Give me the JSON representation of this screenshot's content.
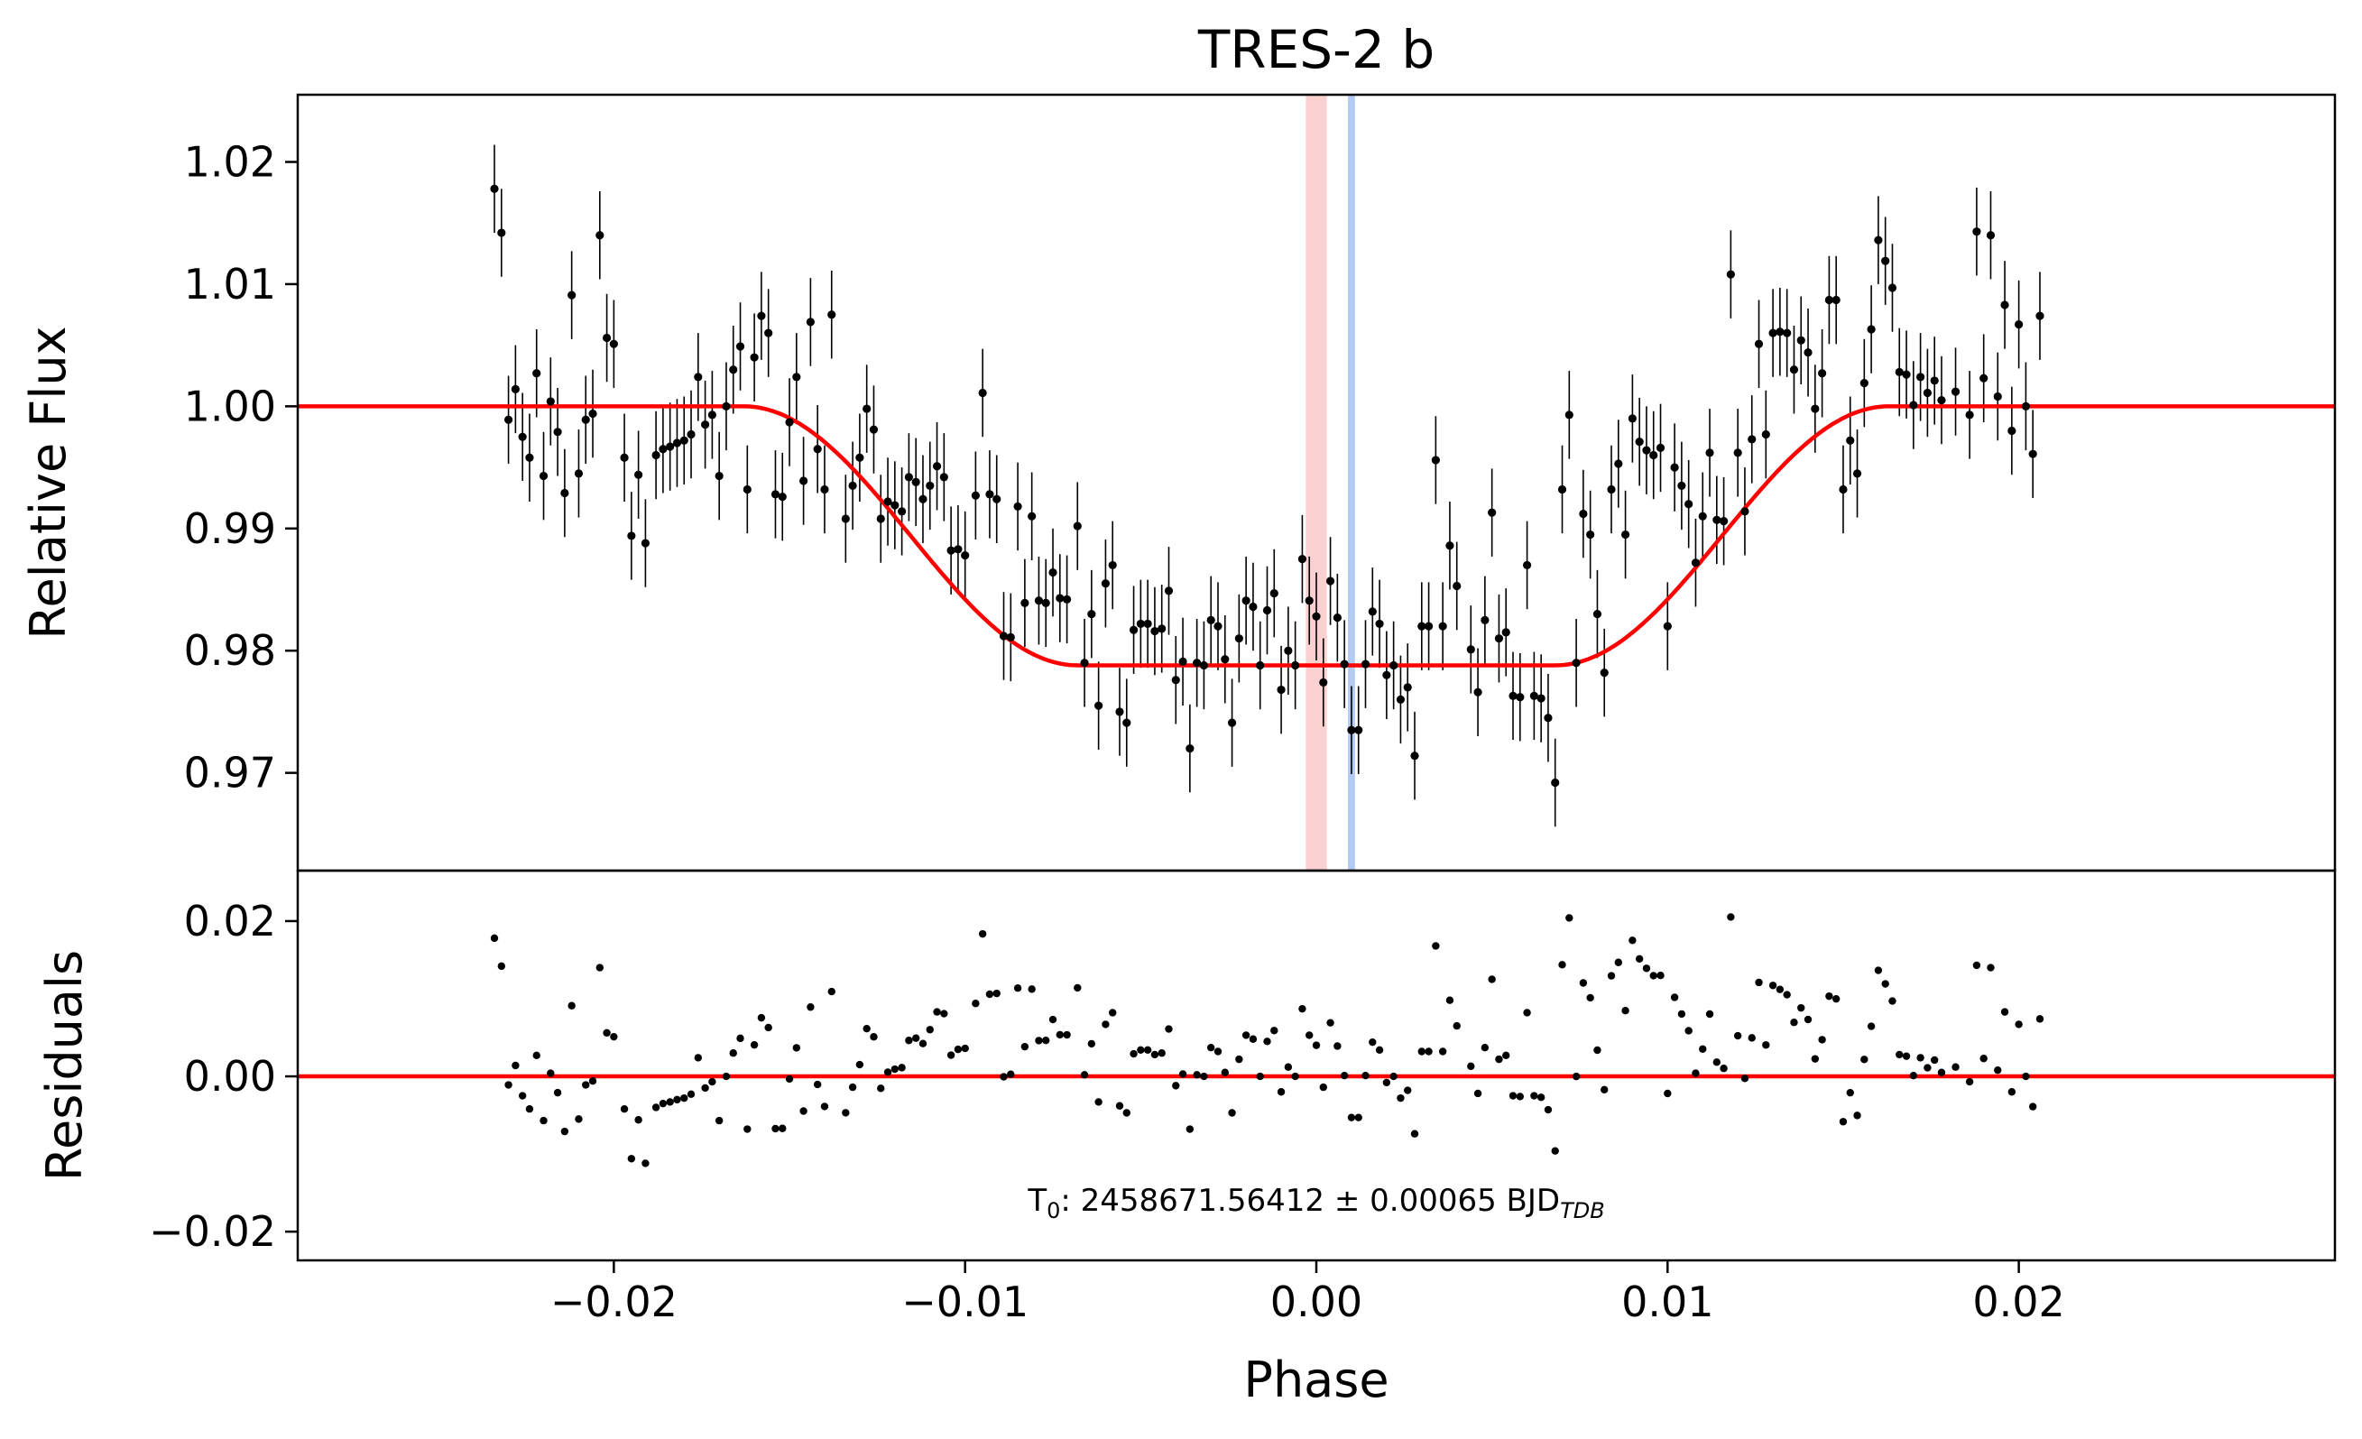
{
  "chart_data": {
    "type": "scatter",
    "title": "TRES-2 b",
    "xlabel": "Phase",
    "colors": {
      "model": "#ff0000",
      "points": "#000000",
      "band_red": "#f6a3a3",
      "band_blue": "#9ab8ee"
    },
    "xlim": [
      -0.029,
      0.029
    ],
    "xticks": [
      -0.02,
      -0.01,
      0.0,
      0.01,
      0.02
    ],
    "xtick_labels": [
      "−0.02",
      "−0.01",
      "0.00",
      "0.01",
      "0.02"
    ],
    "bands": {
      "red": [
        -0.0003,
        0.0003
      ],
      "blue": [
        0.0009,
        0.0011
      ]
    },
    "top_panel": {
      "ylabel": "Relative Flux",
      "ylim": [
        0.962,
        1.0255
      ],
      "yticks": [
        0.97,
        0.98,
        0.99,
        1.0,
        1.01,
        1.02
      ],
      "ytick_labels": [
        "0.97",
        "0.98",
        "0.99",
        "1.00",
        "1.01",
        "1.02"
      ],
      "model": {
        "depth": 0.0212,
        "t1": 0.0163,
        "t2": 0.0068
      },
      "points": [
        [
          -0.0234,
          1.0178
        ],
        [
          -0.0232,
          1.0142
        ],
        [
          -0.023,
          0.9989
        ],
        [
          -0.0228,
          1.0014
        ],
        [
          -0.0226,
          0.9975
        ],
        [
          -0.0224,
          0.9958
        ],
        [
          -0.0222,
          1.0027
        ],
        [
          -0.022,
          0.9943
        ],
        [
          -0.0218,
          1.0004
        ],
        [
          -0.0216,
          0.9979
        ],
        [
          -0.0214,
          0.9929
        ],
        [
          -0.0212,
          1.0091
        ],
        [
          -0.021,
          0.9945
        ],
        [
          -0.0208,
          0.9989
        ],
        [
          -0.0206,
          0.9994
        ],
        [
          -0.0204,
          1.014
        ],
        [
          -0.0202,
          1.0056
        ],
        [
          -0.02,
          1.0051
        ],
        [
          -0.0197,
          0.9958
        ],
        [
          -0.0195,
          0.9894
        ],
        [
          -0.0193,
          0.9944
        ],
        [
          -0.0191,
          0.9888
        ],
        [
          -0.0188,
          0.996
        ],
        [
          -0.0186,
          0.9965
        ],
        [
          -0.0184,
          0.9967
        ],
        [
          -0.0182,
          0.997
        ],
        [
          -0.018,
          0.9972
        ],
        [
          -0.0178,
          0.9977
        ],
        [
          -0.0176,
          1.0024
        ],
        [
          -0.0174,
          0.9985
        ],
        [
          -0.0172,
          0.9993
        ],
        [
          -0.017,
          0.9943
        ],
        [
          -0.0168,
          1.0
        ],
        [
          -0.0166,
          1.003
        ],
        [
          -0.0164,
          1.0049
        ],
        [
          -0.0162,
          0.9932
        ],
        [
          -0.016,
          1.004
        ],
        [
          -0.0158,
          1.0074
        ],
        [
          -0.0156,
          1.006
        ],
        [
          -0.0154,
          0.9928
        ],
        [
          -0.0152,
          0.9926
        ],
        [
          -0.015,
          0.9987
        ],
        [
          -0.0148,
          1.0024
        ],
        [
          -0.0146,
          0.9939
        ],
        [
          -0.0144,
          1.0069
        ],
        [
          -0.0142,
          0.9965
        ],
        [
          -0.014,
          0.9932
        ],
        [
          -0.0138,
          1.0075
        ],
        [
          -0.0134,
          0.9908
        ],
        [
          -0.0132,
          0.9935
        ],
        [
          -0.013,
          0.9958
        ],
        [
          -0.0128,
          0.9998
        ],
        [
          -0.0126,
          0.9981
        ],
        [
          -0.0124,
          0.9908
        ],
        [
          -0.0122,
          0.9922
        ],
        [
          -0.012,
          0.9919
        ],
        [
          -0.0118,
          0.9914
        ],
        [
          -0.0116,
          0.9942
        ],
        [
          -0.0114,
          0.9938
        ],
        [
          -0.0112,
          0.9924
        ],
        [
          -0.011,
          0.9935
        ],
        [
          -0.0108,
          0.9951
        ],
        [
          -0.0106,
          0.9942
        ],
        [
          -0.0104,
          0.9882
        ],
        [
          -0.0102,
          0.9883
        ],
        [
          -0.01,
          0.9878
        ],
        [
          -0.0097,
          0.9927
        ],
        [
          -0.0095,
          1.0011
        ],
        [
          -0.0093,
          0.9928
        ],
        [
          -0.0091,
          0.9924
        ],
        [
          -0.0089,
          0.9812
        ],
        [
          -0.0087,
          0.9811
        ],
        [
          -0.0085,
          0.9918
        ],
        [
          -0.0083,
          0.9839
        ],
        [
          -0.0081,
          0.991
        ],
        [
          -0.0079,
          0.9841
        ],
        [
          -0.0077,
          0.9839
        ],
        [
          -0.0075,
          0.9864
        ],
        [
          -0.0073,
          0.9843
        ],
        [
          -0.0071,
          0.9842
        ],
        [
          -0.0068,
          0.9902
        ],
        [
          -0.0066,
          0.979
        ],
        [
          -0.0064,
          0.983
        ],
        [
          -0.0062,
          0.9755
        ],
        [
          -0.006,
          0.9855
        ],
        [
          -0.0058,
          0.987
        ],
        [
          -0.0056,
          0.975
        ],
        [
          -0.0054,
          0.9741
        ],
        [
          -0.0052,
          0.9817
        ],
        [
          -0.005,
          0.9822
        ],
        [
          -0.0048,
          0.9822
        ],
        [
          -0.0046,
          0.9816
        ],
        [
          -0.0044,
          0.9818
        ],
        [
          -0.0042,
          0.9849
        ],
        [
          -0.004,
          0.9776
        ],
        [
          -0.0038,
          0.9791
        ],
        [
          -0.0036,
          0.972
        ],
        [
          -0.0034,
          0.979
        ],
        [
          -0.0032,
          0.9788
        ],
        [
          -0.003,
          0.9825
        ],
        [
          -0.0028,
          0.982
        ],
        [
          -0.0026,
          0.9793
        ],
        [
          -0.0024,
          0.9741
        ],
        [
          -0.0022,
          0.981
        ],
        [
          -0.002,
          0.9841
        ],
        [
          -0.0018,
          0.9836
        ],
        [
          -0.0016,
          0.9788
        ],
        [
          -0.0014,
          0.9833
        ],
        [
          -0.0012,
          0.9847
        ],
        [
          -0.001,
          0.9768
        ],
        [
          -0.0008,
          0.98
        ],
        [
          -0.0006,
          0.9788
        ],
        [
          -0.0004,
          0.9875
        ],
        [
          -0.0002,
          0.9841
        ],
        [
          0.0,
          0.9828
        ],
        [
          0.0002,
          0.9774
        ],
        [
          0.0004,
          0.9857
        ],
        [
          0.0006,
          0.9827
        ],
        [
          0.0008,
          0.9789
        ],
        [
          0.001,
          0.9735
        ],
        [
          0.0012,
          0.9735
        ],
        [
          0.0014,
          0.9789
        ],
        [
          0.0016,
          0.9832
        ],
        [
          0.0018,
          0.9822
        ],
        [
          0.002,
          0.978
        ],
        [
          0.0022,
          0.9788
        ],
        [
          0.0024,
          0.976
        ],
        [
          0.0026,
          0.977
        ],
        [
          0.0028,
          0.9714
        ],
        [
          0.003,
          0.982
        ],
        [
          0.0032,
          0.982
        ],
        [
          0.0034,
          0.9956
        ],
        [
          0.0036,
          0.982
        ],
        [
          0.0038,
          0.9886
        ],
        [
          0.004,
          0.9853
        ],
        [
          0.0044,
          0.9801
        ],
        [
          0.0046,
          0.9766
        ],
        [
          0.0048,
          0.9825
        ],
        [
          0.005,
          0.9913
        ],
        [
          0.0052,
          0.981
        ],
        [
          0.0054,
          0.9815
        ],
        [
          0.0056,
          0.9763
        ],
        [
          0.0058,
          0.9762
        ],
        [
          0.006,
          0.987
        ],
        [
          0.0062,
          0.9763
        ],
        [
          0.0064,
          0.9761
        ],
        [
          0.0066,
          0.9745
        ],
        [
          0.0068,
          0.9692
        ],
        [
          0.007,
          0.9932
        ],
        [
          0.0072,
          0.9993
        ],
        [
          0.0074,
          0.979
        ],
        [
          0.0076,
          0.9912
        ],
        [
          0.0078,
          0.9895
        ],
        [
          0.008,
          0.983
        ],
        [
          0.0082,
          0.9782
        ],
        [
          0.0084,
          0.9932
        ],
        [
          0.0086,
          0.9953
        ],
        [
          0.0088,
          0.9895
        ],
        [
          0.009,
          0.999
        ],
        [
          0.0092,
          0.9971
        ],
        [
          0.0094,
          0.9964
        ],
        [
          0.0096,
          0.996
        ],
        [
          0.0098,
          0.9966
        ],
        [
          0.01,
          0.982
        ],
        [
          0.0102,
          0.995
        ],
        [
          0.0104,
          0.9935
        ],
        [
          0.0106,
          0.992
        ],
        [
          0.0108,
          0.9872
        ],
        [
          0.011,
          0.991
        ],
        [
          0.0112,
          0.9962
        ],
        [
          0.0114,
          0.9907
        ],
        [
          0.0116,
          0.9906
        ],
        [
          0.0118,
          1.0108
        ],
        [
          0.012,
          0.9962
        ],
        [
          0.0122,
          0.9914
        ],
        [
          0.0124,
          0.9973
        ],
        [
          0.0126,
          1.0051
        ],
        [
          0.0128,
          0.9977
        ],
        [
          0.013,
          1.006
        ],
        [
          0.0132,
          1.0061
        ],
        [
          0.0134,
          1.006
        ],
        [
          0.0136,
          1.003
        ],
        [
          0.0138,
          1.0054
        ],
        [
          0.014,
          1.0044
        ],
        [
          0.0142,
          0.9998
        ],
        [
          0.0144,
          1.0027
        ],
        [
          0.0146,
          1.0087
        ],
        [
          0.0148,
          1.0087
        ],
        [
          0.015,
          0.9932
        ],
        [
          0.0152,
          0.9972
        ],
        [
          0.0154,
          0.9945
        ],
        [
          0.0156,
          1.0019
        ],
        [
          0.0158,
          1.0063
        ],
        [
          0.016,
          1.0136
        ],
        [
          0.0162,
          1.0119
        ],
        [
          0.0164,
          1.0097
        ],
        [
          0.0166,
          1.0028
        ],
        [
          0.0168,
          1.0026
        ],
        [
          0.017,
          1.0001
        ],
        [
          0.0172,
          1.0024
        ],
        [
          0.0174,
          1.0011
        ],
        [
          0.0176,
          1.0021
        ],
        [
          0.0178,
          1.0005
        ],
        [
          0.0182,
          1.0012
        ],
        [
          0.0186,
          0.9993
        ],
        [
          0.0188,
          1.0143
        ],
        [
          0.019,
          1.0023
        ],
        [
          0.0192,
          1.014
        ],
        [
          0.0194,
          1.0008
        ],
        [
          0.0196,
          1.0083
        ],
        [
          0.0198,
          0.998
        ],
        [
          0.02,
          1.0067
        ],
        [
          0.0202,
          1.0
        ],
        [
          0.0204,
          0.9961
        ],
        [
          0.0206,
          1.0074
        ]
      ],
      "error_half": 0.0036
    },
    "bottom_panel": {
      "ylabel": "Residuals",
      "ylim": [
        -0.0237,
        0.0265
      ],
      "yticks": [
        -0.02,
        0.0,
        0.02
      ],
      "ytick_labels": [
        "−0.02",
        "0.00",
        "0.02"
      ],
      "annotation": {
        "prefix": "T",
        "sub": "0",
        "text": ": 2458671.56412 ± 0.00065 BJD",
        "sub2": "TDB"
      }
    }
  }
}
